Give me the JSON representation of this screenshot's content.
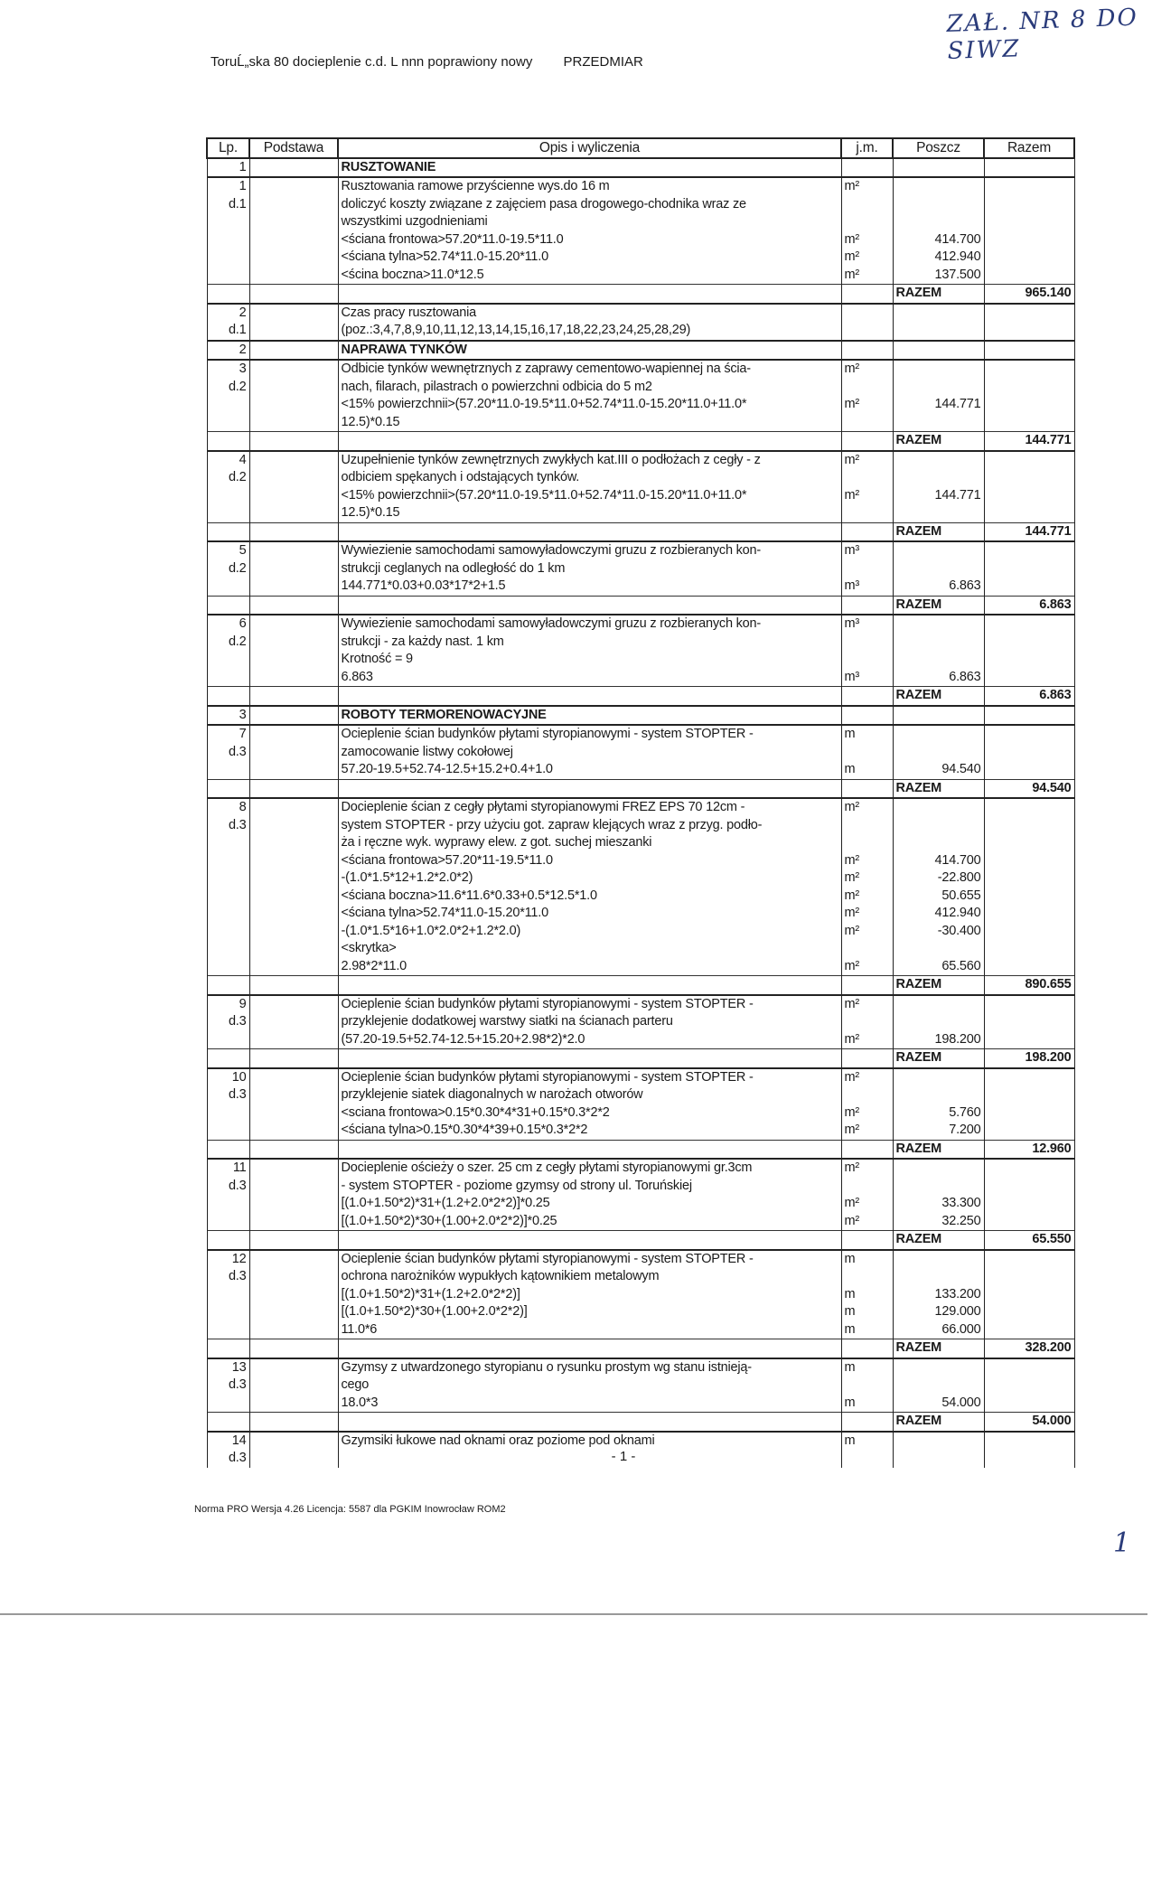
{
  "handwritten_note": "ZAŁ. NR 8 DO SIWZ",
  "handwritten_page": "1",
  "header": {
    "file": "ToruĹ„ska 80 docieplenie c.d. L nnn poprawiony nowy",
    "doc_type": "PRZEDMIAR"
  },
  "columns": [
    "Lp.",
    "Podstawa",
    "Opis i wyliczenia",
    "j.m.",
    "Poszcz",
    "Razem"
  ],
  "razem_label": "RAZEM",
  "rows": [
    {
      "type": "section",
      "lp": "1",
      "title": "RUSZTOWANIE"
    },
    {
      "type": "item",
      "lp": "1",
      "podstawa": "d.1",
      "lines": [
        {
          "text": "Rusztowania ramowe przyścienne wys.do 16 m",
          "unit": "m²"
        },
        {
          "text": "doliczyć koszty związane z zajęciem pasa drogowego-chodnika wraz ze"
        },
        {
          "text": "wszystkimi uzgodnieniami"
        },
        {
          "text": "<ściana frontowa>57.20*11.0-19.5*11.0",
          "unit": "m²",
          "value": "414.700"
        },
        {
          "text": "<ściana tylna>52.74*11.0-15.20*11.0",
          "unit": "m²",
          "value": "412.940"
        },
        {
          "text": "<ścina boczna>11.0*12.5",
          "unit": "m²",
          "value": "137.500"
        }
      ],
      "razem": "965.140"
    },
    {
      "type": "item",
      "lp": "2",
      "podstawa": "d.1",
      "lines": [
        {
          "text": "Czas pracy rusztowania"
        },
        {
          "text": "(poz.:3,4,7,8,9,10,11,12,13,14,15,16,17,18,22,23,24,25,28,29)"
        }
      ]
    },
    {
      "type": "section",
      "lp": "2",
      "title": "NAPRAWA TYNKÓW"
    },
    {
      "type": "item",
      "lp": "3",
      "podstawa": "d.2",
      "lines": [
        {
          "text": "Odbicie tynków wewnętrznych z zaprawy cementowo-wapiennej na ścia-",
          "unit": "m²"
        },
        {
          "text": "nach, filarach, pilastrach o powierzchni odbicia do 5 m2"
        },
        {
          "text": "<15% powierzchnii>(57.20*11.0-19.5*11.0+52.74*11.0-15.20*11.0+11.0*",
          "unit": "m²",
          "value": "144.771"
        },
        {
          "text": "12.5)*0.15"
        }
      ],
      "razem": "144.771"
    },
    {
      "type": "item",
      "lp": "4",
      "podstawa": "d.2",
      "lines": [
        {
          "text": "Uzupełnienie tynków zewnętrznych zwykłych kat.III o podłożach z cegły - z",
          "unit": "m²"
        },
        {
          "text": "odbiciem spękanych i odstających tynków."
        },
        {
          "text": "<15% powierzchnii>(57.20*11.0-19.5*11.0+52.74*11.0-15.20*11.0+11.0*",
          "unit": "m²",
          "value": "144.771"
        },
        {
          "text": "12.5)*0.15"
        }
      ],
      "razem": "144.771"
    },
    {
      "type": "item",
      "lp": "5",
      "podstawa": "d.2",
      "lines": [
        {
          "text": "Wywiezienie samochodami samowyładowczymi gruzu z rozbieranych kon-",
          "unit": "m³"
        },
        {
          "text": "strukcji ceglanych na odległość do 1 km"
        },
        {
          "text": "144.771*0.03+0.03*17*2+1.5",
          "unit": "m³",
          "value": "6.863"
        }
      ],
      "razem": "6.863"
    },
    {
      "type": "item",
      "lp": "6",
      "podstawa": "d.2",
      "lines": [
        {
          "text": "Wywiezienie samochodami samowyładowczymi gruzu z rozbieranych kon-",
          "unit": "m³"
        },
        {
          "text": "strukcji - za każdy nast. 1 km"
        },
        {
          "text": "Krotność = 9"
        },
        {
          "text": "6.863",
          "unit": "m³",
          "value": "6.863"
        }
      ],
      "razem": "6.863"
    },
    {
      "type": "section",
      "lp": "3",
      "title": "ROBOTY TERMORENOWACYJNE"
    },
    {
      "type": "item",
      "lp": "7",
      "podstawa": "d.3",
      "lines": [
        {
          "text": "Ocieplenie ścian budynków płytami styropianowymi - system STOPTER -",
          "unit": "m"
        },
        {
          "text": "zamocowanie listwy cokołowej"
        },
        {
          "text": "57.20-19.5+52.74-12.5+15.2+0.4+1.0",
          "unit": "m",
          "value": "94.540"
        }
      ],
      "razem": "94.540"
    },
    {
      "type": "item",
      "lp": "8",
      "podstawa": "d.3",
      "lines": [
        {
          "text": "Docieplenie ścian z cegły płytami styropianowymi FREZ EPS 70 12cm -",
          "unit": "m²"
        },
        {
          "text": "system STOPTER - przy użyciu got. zapraw klejących wraz z przyg. podło-"
        },
        {
          "text": "ża i ręczne wyk. wyprawy elew. z got. suchej mieszanki"
        },
        {
          "text": "<ściana frontowa>57.20*11-19.5*11.0",
          "unit": "m²",
          "value": "414.700"
        },
        {
          "text": "-(1.0*1.5*12+1.2*2.0*2)",
          "unit": "m²",
          "value": "-22.800"
        },
        {
          "text": "<ściana boczna>11.6*11.6*0.33+0.5*12.5*1.0",
          "unit": "m²",
          "value": "50.655"
        },
        {
          "text": "<ściana tylna>52.74*11.0-15.20*11.0",
          "unit": "m²",
          "value": "412.940"
        },
        {
          "text": "-(1.0*1.5*16+1.0*2.0*2+1.2*2.0)",
          "unit": "m²",
          "value": "-30.400"
        },
        {
          "text": "<skrytka>"
        },
        {
          "text": "2.98*2*11.0",
          "unit": "m²",
          "value": "65.560"
        }
      ],
      "razem": "890.655"
    },
    {
      "type": "item",
      "lp": "9",
      "podstawa": "d.3",
      "lines": [
        {
          "text": "Ocieplenie ścian budynków płytami styropianowymi - system STOPTER -",
          "unit": "m²"
        },
        {
          "text": "przyklejenie dodatkowej warstwy siatki na ścianach parteru"
        },
        {
          "text": "(57.20-19.5+52.74-12.5+15.20+2.98*2)*2.0",
          "unit": "m²",
          "value": "198.200"
        }
      ],
      "razem": "198.200"
    },
    {
      "type": "item",
      "lp": "10",
      "podstawa": "d.3",
      "lines": [
        {
          "text": "Ocieplenie ścian budynków płytami styropianowymi - system STOPTER -",
          "unit": "m²"
        },
        {
          "text": "przyklejenie siatek diagonalnych w narożach otworów"
        },
        {
          "text": "<sciana frontowa>0.15*0.30*4*31+0.15*0.3*2*2",
          "unit": "m²",
          "value": "5.760"
        },
        {
          "text": "<ściana tylna>0.15*0.30*4*39+0.15*0.3*2*2",
          "unit": "m²",
          "value": "7.200"
        }
      ],
      "razem": "12.960"
    },
    {
      "type": "item",
      "lp": "11",
      "podstawa": "d.3",
      "lines": [
        {
          "text": "Docieplenie ościeży o szer. 25 cm z cegły płytami styropianowymi gr.3cm",
          "unit": "m²"
        },
        {
          "text": "- system STOPTER - poziome gzymsy od strony ul. Toruńskiej"
        },
        {
          "text": "[(1.0+1.50*2)*31+(1.2+2.0*2*2)]*0.25",
          "unit": "m²",
          "value": "33.300"
        },
        {
          "text": "[(1.0+1.50*2)*30+(1.00+2.0*2*2)]*0.25",
          "unit": "m²",
          "value": "32.250"
        }
      ],
      "razem": "65.550"
    },
    {
      "type": "item",
      "lp": "12",
      "podstawa": "d.3",
      "lines": [
        {
          "text": "Ocieplenie ścian budynków płytami styropianowymi - system STOPTER -",
          "unit": "m"
        },
        {
          "text": "ochrona narożników wypukłych kątownikiem metalowym"
        },
        {
          "text": "[(1.0+1.50*2)*31+(1.2+2.0*2*2)]",
          "unit": "m",
          "value": "133.200"
        },
        {
          "text": "[(1.0+1.50*2)*30+(1.00+2.0*2*2)]",
          "unit": "m",
          "value": "129.000"
        },
        {
          "text": "11.0*6",
          "unit": "m",
          "value": "66.000"
        }
      ],
      "razem": "328.200"
    },
    {
      "type": "item",
      "lp": "13",
      "podstawa": "d.3",
      "lines": [
        {
          "text": "Gzymsy z utwardzonego styropianu o rysunku prostym wg stanu istnieją-",
          "unit": "m"
        },
        {
          "text": "cego"
        },
        {
          "text": "18.0*3",
          "unit": "m",
          "value": "54.000"
        }
      ],
      "razem": "54.000"
    },
    {
      "type": "item",
      "lp": "14",
      "podstawa": "d.3",
      "lines": [
        {
          "text": "Gzymsiki łukowe nad oknami oraz poziome pod oknami",
          "unit": "m"
        },
        {
          "text": ""
        }
      ]
    }
  ],
  "page_number": "- 1 -",
  "footer": "Norma PRO Wersja 4.26 Licencja: 5587 dla PGKIM Inowrocław ROM2"
}
